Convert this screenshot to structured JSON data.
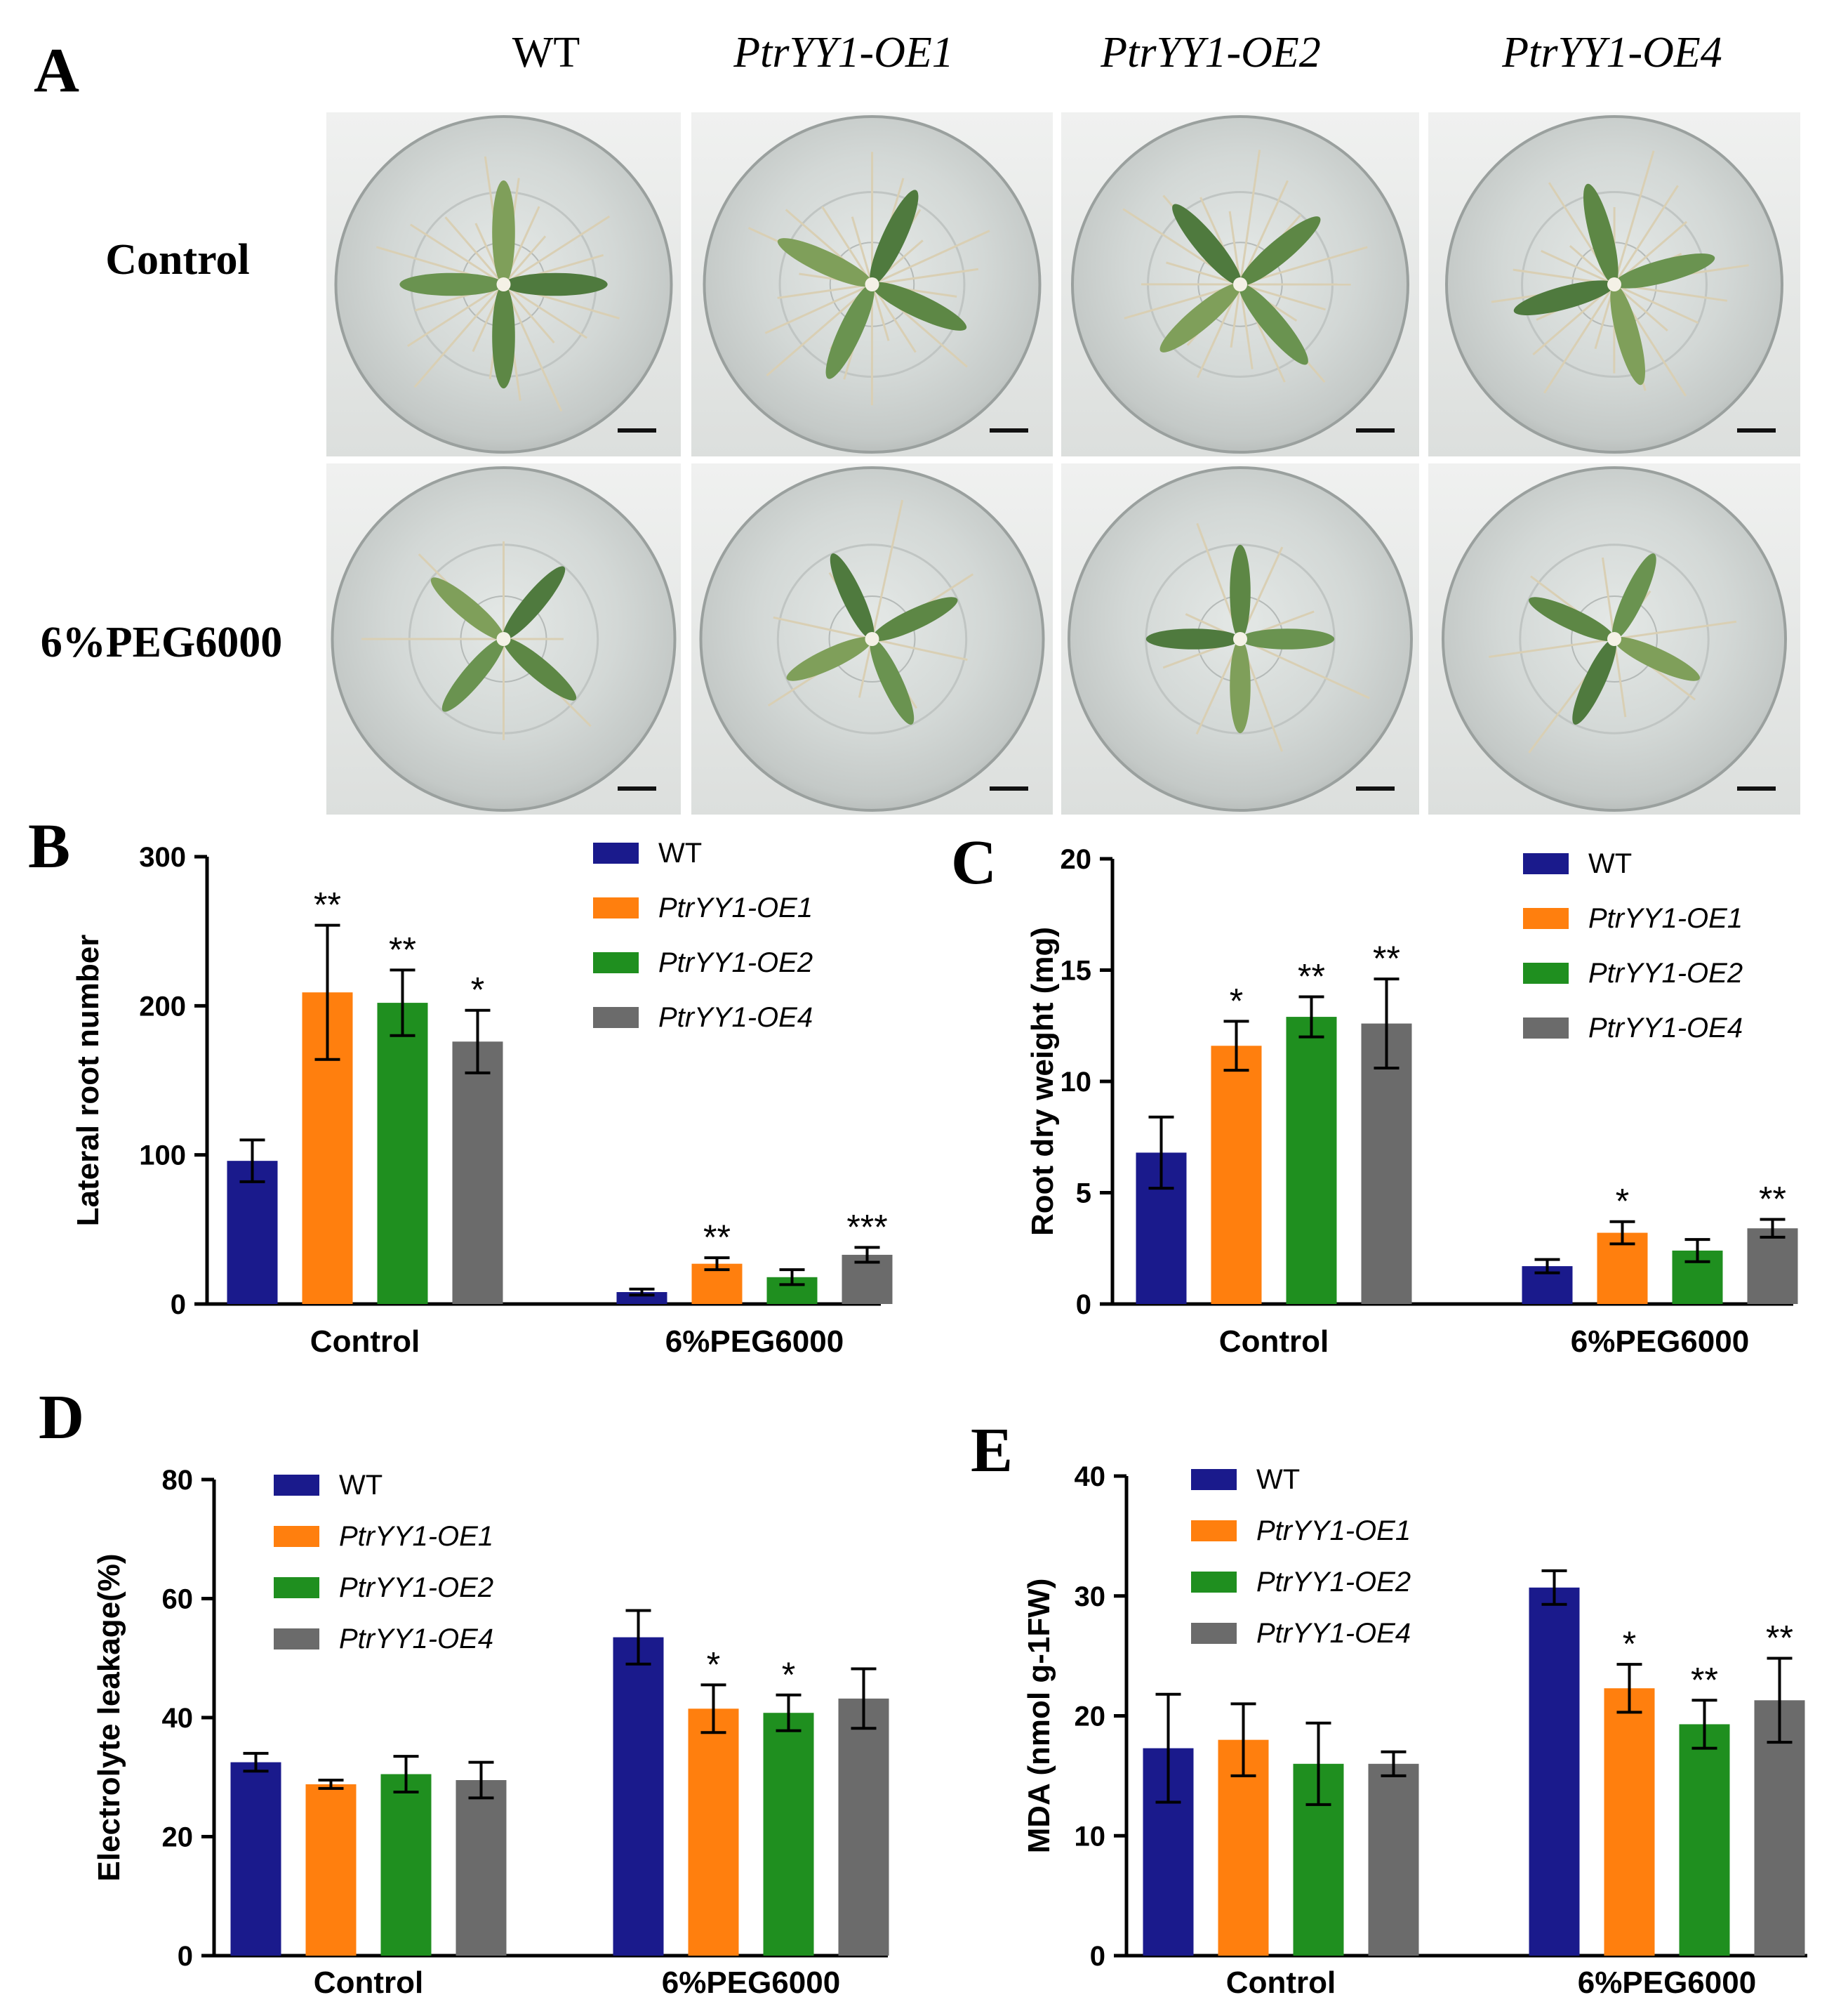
{
  "panel_letters": [
    "A",
    "B",
    "C",
    "D",
    "E"
  ],
  "photo_panel": {
    "column_labels": [
      "WT",
      "PtrYY1-OE1",
      "PtrYY1-OE2",
      "PtrYY1-OE4"
    ],
    "row_labels": [
      "Control",
      "6%PEG6000"
    ]
  },
  "colors": {
    "WT": "#1a1a8c",
    "PtrYY1-OE1": "#ff7f0e",
    "PtrYY1-OE2": "#1f8f1f",
    "PtrYY1-OE4": "#6b6b6b"
  },
  "chart_data": [
    {
      "panel": "B",
      "type": "bar",
      "categories": [
        "Control",
        "6%PEG6000"
      ],
      "series": [
        {
          "name": "WT",
          "values": [
            96,
            8
          ],
          "errors": [
            14,
            2
          ],
          "sig": [
            "",
            ""
          ]
        },
        {
          "name": "PtrYY1-OE1",
          "values": [
            209,
            27
          ],
          "errors": [
            45,
            4
          ],
          "sig": [
            "**",
            "**"
          ]
        },
        {
          "name": "PtrYY1-OE2",
          "values": [
            202,
            18
          ],
          "errors": [
            22,
            5
          ],
          "sig": [
            "**",
            ""
          ]
        },
        {
          "name": "PtrYY1-OE4",
          "values": [
            176,
            33
          ],
          "errors": [
            21,
            5
          ],
          "sig": [
            "*",
            "***"
          ]
        }
      ],
      "ylabel": "Lateral root number",
      "ylim": [
        0,
        300
      ],
      "yticks": [
        0,
        100,
        200,
        300
      ],
      "legend": "top-right"
    },
    {
      "panel": "C",
      "type": "bar",
      "categories": [
        "Control",
        "6%PEG6000"
      ],
      "series": [
        {
          "name": "WT",
          "values": [
            6.8,
            1.7
          ],
          "errors": [
            1.6,
            0.3
          ],
          "sig": [
            "",
            ""
          ]
        },
        {
          "name": "PtrYY1-OE1",
          "values": [
            11.6,
            3.2
          ],
          "errors": [
            1.1,
            0.5
          ],
          "sig": [
            "*",
            "*"
          ]
        },
        {
          "name": "PtrYY1-OE2",
          "values": [
            12.9,
            2.4
          ],
          "errors": [
            0.9,
            0.5
          ],
          "sig": [
            "**",
            ""
          ]
        },
        {
          "name": "PtrYY1-OE4",
          "values": [
            12.6,
            3.4
          ],
          "errors": [
            2.0,
            0.4
          ],
          "sig": [
            "**",
            "**"
          ]
        }
      ],
      "ylabel": "Root dry weight (mg)",
      "ylim": [
        0,
        20
      ],
      "yticks": [
        0,
        5,
        10,
        15,
        20
      ],
      "legend": "top-right"
    },
    {
      "panel": "D",
      "type": "bar",
      "categories": [
        "Control",
        "6%PEG6000"
      ],
      "series": [
        {
          "name": "WT",
          "values": [
            32.5,
            53.5
          ],
          "errors": [
            1.5,
            4.5
          ],
          "sig": [
            "",
            ""
          ]
        },
        {
          "name": "PtrYY1-OE1",
          "values": [
            28.8,
            41.5
          ],
          "errors": [
            0.7,
            4
          ],
          "sig": [
            "",
            "*"
          ]
        },
        {
          "name": "PtrYY1-OE2",
          "values": [
            30.5,
            40.8
          ],
          "errors": [
            3,
            3
          ],
          "sig": [
            "",
            "*"
          ]
        },
        {
          "name": "PtrYY1-OE4",
          "values": [
            29.5,
            43.2
          ],
          "errors": [
            3,
            5
          ],
          "sig": [
            "",
            ""
          ]
        }
      ],
      "ylabel": "Electrolyte leakage(%)",
      "ylim": [
        0,
        80
      ],
      "yticks": [
        0,
        20,
        40,
        60,
        80
      ],
      "legend": "top-left"
    },
    {
      "panel": "E",
      "type": "bar",
      "categories": [
        "Control",
        "6%PEG6000"
      ],
      "series": [
        {
          "name": "WT",
          "values": [
            17.3,
            30.7
          ],
          "errors": [
            4.5,
            1.4
          ],
          "sig": [
            "",
            ""
          ]
        },
        {
          "name": "PtrYY1-OE1",
          "values": [
            18.0,
            22.3
          ],
          "errors": [
            3,
            2
          ],
          "sig": [
            "",
            "*"
          ]
        },
        {
          "name": "PtrYY1-OE2",
          "values": [
            16.0,
            19.3
          ],
          "errors": [
            3.4,
            2
          ],
          "sig": [
            "",
            "**"
          ]
        },
        {
          "name": "PtrYY1-OE4",
          "values": [
            16.0,
            21.3
          ],
          "errors": [
            1,
            3.5
          ],
          "sig": [
            "",
            "**"
          ]
        }
      ],
      "ylabel": "MDA (nmol g-1FW)",
      "ylim": [
        0,
        40
      ],
      "yticks": [
        0,
        10,
        20,
        30,
        40
      ],
      "legend": "top-left"
    }
  ]
}
